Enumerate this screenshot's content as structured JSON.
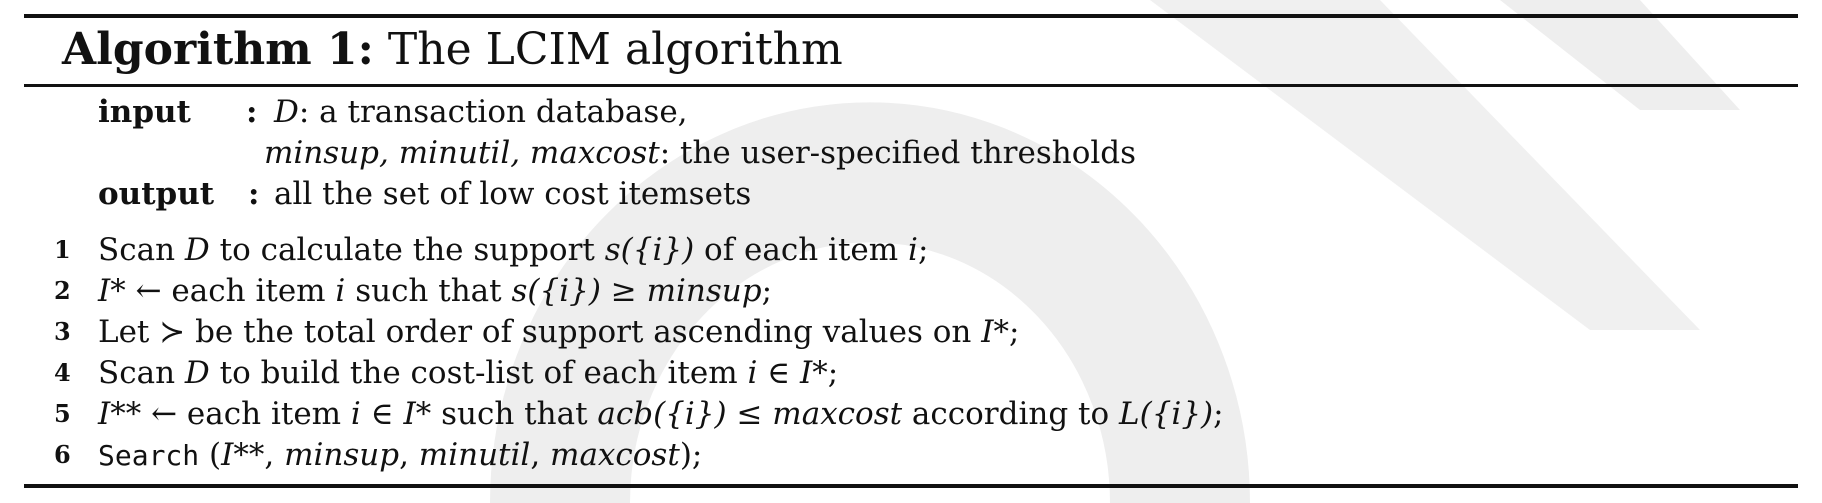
{
  "algorithm": {
    "label": "Algorithm 1:",
    "name": "The LCIM algorithm"
  },
  "io": {
    "input_keyword": "input",
    "output_keyword": "output",
    "separator": ":",
    "input_line1_var": "D",
    "input_line1_text": ": a transaction database,",
    "input_line2_vars": "minsup, minutil, maxcost",
    "input_line2_text": ": the user-specified thresholds",
    "output_text": "all the set of low cost itemsets"
  },
  "steps": [
    {
      "num": "1",
      "text_a": "Scan ",
      "m1": "D",
      "text_b": " to calculate the support ",
      "m2": "s({i})",
      "text_c": " of each item ",
      "m3": "i",
      "text_d": ";"
    },
    {
      "num": "2",
      "m1": "I*",
      "text_a": " ← each item ",
      "m2": "i",
      "text_b": " such that ",
      "m3": "s({i}) ≥ minsup",
      "text_c": ";"
    },
    {
      "num": "3",
      "text_a": "Let ≻ be the total order of support ascending values on ",
      "m1": "I*",
      "text_b": ";"
    },
    {
      "num": "4",
      "text_a": "Scan ",
      "m1": "D",
      "text_b": " to build the cost-list of each item ",
      "m2": "i ∈ I*",
      "text_c": ";"
    },
    {
      "num": "5",
      "m1": "I**",
      "text_a": " ← each item ",
      "m2": "i ∈ I*",
      "text_b": " such that ",
      "m3": "acb({i}) ≤ maxcost",
      "text_c": " according to ",
      "m4": "L({i})",
      "text_d": ";"
    },
    {
      "num": "6",
      "func": "Search",
      "text_a": " (",
      "m1": "I**",
      "text_b": ", ",
      "m2": "minsup",
      "text_c": ", ",
      "m3": "minutil",
      "text_d": ", ",
      "m4": "maxcost",
      "text_e": ");"
    }
  ]
}
